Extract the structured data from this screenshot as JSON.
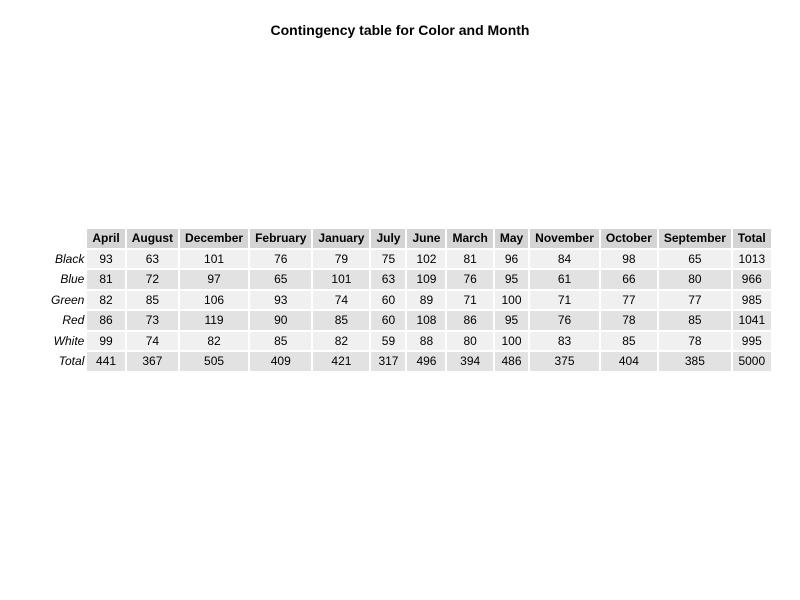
{
  "chart_data": {
    "type": "table",
    "title": "Contingency table for Color and Month",
    "columns": [
      "April",
      "August",
      "December",
      "February",
      "January",
      "July",
      "June",
      "March",
      "May",
      "November",
      "October",
      "September",
      "Total"
    ],
    "rows": [
      {
        "label": "Black",
        "values": [
          93,
          63,
          101,
          76,
          79,
          75,
          102,
          81,
          96,
          84,
          98,
          65,
          1013
        ]
      },
      {
        "label": "Blue",
        "values": [
          81,
          72,
          97,
          65,
          101,
          63,
          109,
          76,
          95,
          61,
          66,
          80,
          966
        ]
      },
      {
        "label": "Green",
        "values": [
          82,
          85,
          106,
          93,
          74,
          60,
          89,
          71,
          100,
          71,
          77,
          77,
          985
        ]
      },
      {
        "label": "Red",
        "values": [
          86,
          73,
          119,
          90,
          85,
          60,
          108,
          86,
          95,
          76,
          78,
          85,
          1041
        ]
      },
      {
        "label": "White",
        "values": [
          99,
          74,
          82,
          85,
          82,
          59,
          88,
          80,
          100,
          83,
          85,
          78,
          995
        ]
      },
      {
        "label": "Total",
        "values": [
          441,
          367,
          505,
          409,
          421,
          317,
          496,
          394,
          486,
          375,
          404,
          385,
          5000
        ]
      }
    ],
    "colors": {
      "header_bg": "#d4d4d4",
      "row_odd_bg": "#f0f0f0",
      "row_even_bg": "#e2e2e2"
    }
  }
}
